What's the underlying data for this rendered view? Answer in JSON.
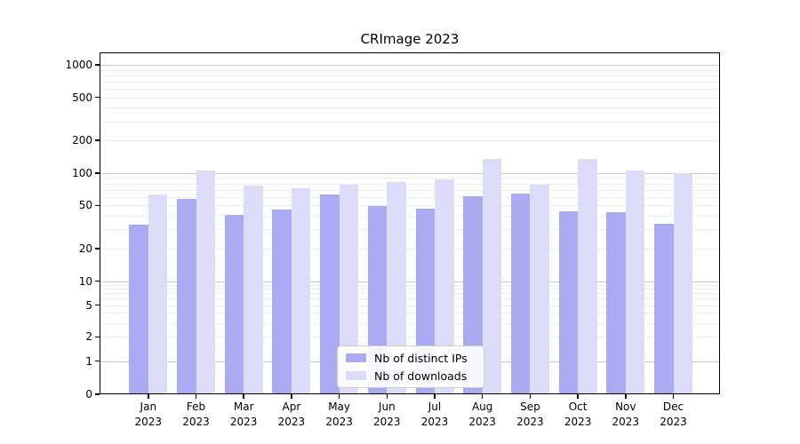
{
  "title": "CRImage 2023",
  "chart_data": {
    "type": "bar",
    "title": "CRImage 2023",
    "yscale": "log",
    "categories": [
      "Jan 2023",
      "Feb 2023",
      "Mar 2023",
      "Apr 2023",
      "May 2023",
      "Jun 2023",
      "Jul 2023",
      "Aug 2023",
      "Sep 2023",
      "Oct 2023",
      "Nov 2023",
      "Dec 2023"
    ],
    "month_labels": [
      "Jan",
      "Feb",
      "Mar",
      "Apr",
      "May",
      "Jun",
      "Jul",
      "Aug",
      "Sep",
      "Oct",
      "Nov",
      "Dec"
    ],
    "year_label": "2023",
    "series": [
      {
        "name": "Nb of distinct IPs",
        "color": "#aaaaf2",
        "values": [
          33,
          58,
          41,
          46,
          63,
          49,
          47,
          61,
          64,
          44,
          43,
          34
        ]
      },
      {
        "name": "Nb of downloads",
        "color": "#dcdcf8",
        "values": [
          63,
          105,
          76,
          72,
          78,
          82,
          88,
          135,
          78,
          135,
          106,
          100
        ]
      }
    ],
    "y_ticks": [
      0,
      1,
      2,
      5,
      10,
      20,
      50,
      100,
      200,
      500,
      1000
    ],
    "ylim": [
      0,
      1000
    ],
    "grid": true,
    "legend_position": "lower-center"
  },
  "colors": {
    "background": "#ffffff",
    "axis": "#000000",
    "grid_major": "#c8c8c8",
    "grid_minor": "#ececec",
    "legend_border": "#cccccc"
  }
}
